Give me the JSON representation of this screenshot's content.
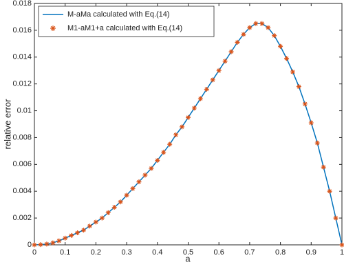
{
  "chart_data": {
    "type": "line",
    "xlabel": "a",
    "ylabel": "relative error",
    "x": [
      0,
      0.02,
      0.04,
      0.06,
      0.08,
      0.1,
      0.12,
      0.14,
      0.16,
      0.18,
      0.2,
      0.22,
      0.24,
      0.26,
      0.28,
      0.3,
      0.32,
      0.34,
      0.36,
      0.38,
      0.4,
      0.42,
      0.44,
      0.46,
      0.48,
      0.5,
      0.52,
      0.54,
      0.56,
      0.58,
      0.6,
      0.62,
      0.64,
      0.66,
      0.68,
      0.7,
      0.72,
      0.74,
      0.76,
      0.78,
      0.8,
      0.82,
      0.84,
      0.86,
      0.88,
      0.9,
      0.92,
      0.94,
      0.96,
      0.98,
      1
    ],
    "series": [
      {
        "name": "M-aMa calculated with Eq.(14)",
        "color": "#0072bd",
        "style": "line",
        "values": [
          0,
          2e-05,
          6e-05,
          0.00015,
          0.0003,
          0.0005,
          0.0007,
          0.0009,
          0.0011,
          0.0014,
          0.0017,
          0.002,
          0.0024,
          0.0028,
          0.0032,
          0.0037,
          0.0042,
          0.0047,
          0.0052,
          0.0057,
          0.0063,
          0.0069,
          0.0075,
          0.0082,
          0.0088,
          0.0095,
          0.0102,
          0.0109,
          0.0116,
          0.0123,
          0.013,
          0.0137,
          0.0144,
          0.0151,
          0.0157,
          0.0162,
          0.0165,
          0.0165,
          0.0162,
          0.0156,
          0.0148,
          0.0139,
          0.0129,
          0.0118,
          0.0105,
          0.0091,
          0.0076,
          0.0058,
          0.004,
          0.002,
          0
        ]
      },
      {
        "name": "M1-aM1+a calculated with Eq.(14)",
        "color": "#d95319",
        "style": "marker",
        "values": [
          0,
          2e-05,
          6e-05,
          0.00015,
          0.0003,
          0.0005,
          0.0007,
          0.0009,
          0.0011,
          0.0014,
          0.0017,
          0.002,
          0.0024,
          0.0028,
          0.0032,
          0.0037,
          0.0042,
          0.0047,
          0.0052,
          0.0057,
          0.0063,
          0.0069,
          0.0075,
          0.0082,
          0.0088,
          0.0095,
          0.0102,
          0.0109,
          0.0116,
          0.0123,
          0.013,
          0.0137,
          0.0144,
          0.0151,
          0.0157,
          0.0162,
          0.0165,
          0.0165,
          0.0162,
          0.0156,
          0.0148,
          0.0139,
          0.0129,
          0.0118,
          0.0105,
          0.0091,
          0.0076,
          0.0058,
          0.004,
          0.002,
          0
        ]
      }
    ],
    "xlim": [
      0,
      1
    ],
    "xticks": [
      0,
      0.1,
      0.2,
      0.3,
      0.4,
      0.5,
      0.6,
      0.7,
      0.8,
      0.9,
      1
    ],
    "ylim": [
      0,
      0.018
    ],
    "yticks": [
      0,
      0.002,
      0.004,
      0.006,
      0.008,
      0.01,
      0.012,
      0.014,
      0.016,
      0.018
    ],
    "legend": "upper left",
    "grid": false
  }
}
